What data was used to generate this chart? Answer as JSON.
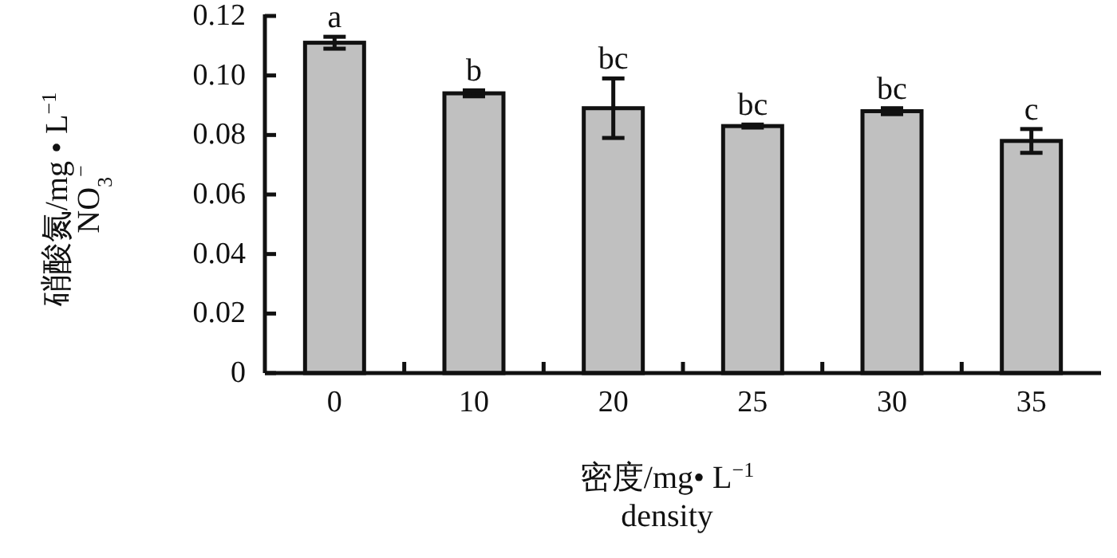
{
  "chart_data": {
    "type": "bar",
    "xlabel": "密度/mg• L$^{−1}$\ndensity",
    "ylabel": "硝酸氮/mg • L$^{−1}$\nNO$_{3}$$^{−}$",
    "categories": [
      "0",
      "10",
      "20",
      "25",
      "30",
      "35"
    ],
    "values": [
      0.111,
      0.094,
      0.089,
      0.083,
      0.088,
      0.078
    ],
    "errors": [
      0.002,
      0.001,
      0.01,
      0.0005,
      0.001,
      0.004
    ],
    "color": "#c0c0c0",
    "ylim": [
      0,
      0.12
    ],
    "yticks": [
      0,
      0.02,
      0.04,
      0.06,
      0.08,
      {
        "value": 0.1,
        "label": "0.10"
      },
      0.12
    ],
    "grid": false,
    "annotations": [
      {
        "text": "a",
        "x": "0",
        "y": 0.113
      },
      {
        "text": "b",
        "x": "10",
        "y": 0.095
      },
      {
        "text": "bc",
        "x": "20",
        "y": 0.099
      },
      {
        "text": "bc",
        "x": "25",
        "y": 0.0835
      },
      {
        "text": "bc",
        "x": "30",
        "y": 0.089
      },
      {
        "text": "c",
        "x": "35",
        "y": 0.082
      }
    ]
  }
}
